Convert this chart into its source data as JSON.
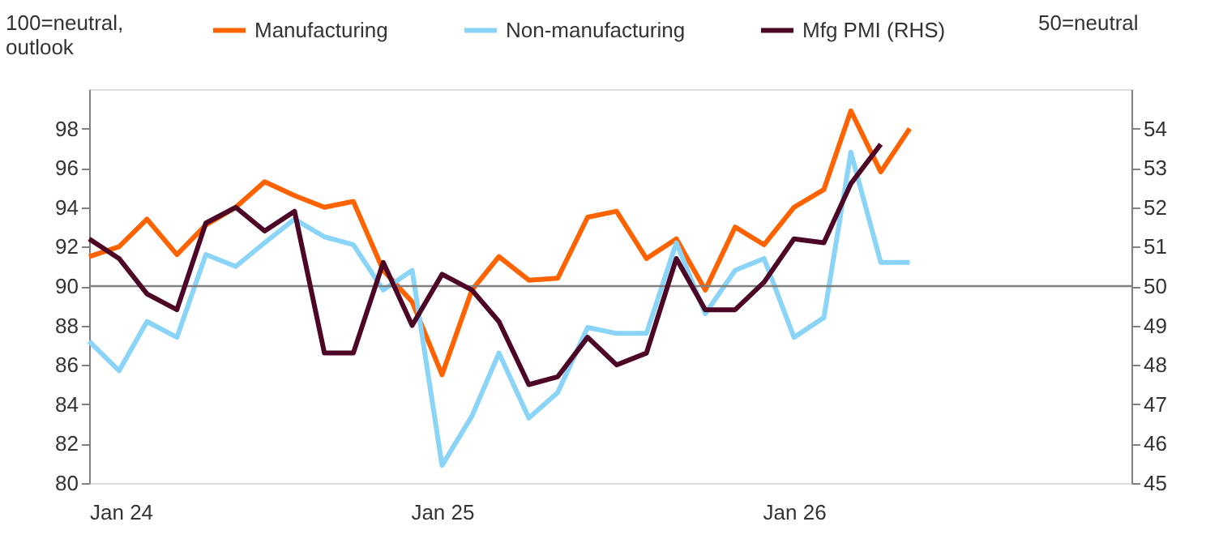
{
  "chart_data": {
    "type": "line",
    "ylabel": "100=neutral, outlook",
    "y2label": "50=neutral",
    "x": [
      "2024-01",
      "2024-02",
      "2024-03",
      "2024-04",
      "2024-05",
      "2024-06",
      "2024-07",
      "2024-08",
      "2024-09",
      "2024-10",
      "2024-11",
      "2024-12",
      "2025-01",
      "2025-02",
      "2025-03",
      "2025-04",
      "2025-05",
      "2025-06",
      "2025-07",
      "2025-08",
      "2025-09",
      "2025-10",
      "2025-11",
      "2025-12",
      "2026-01",
      "2026-02",
      "2026-03",
      "2026-04",
      "2026-05"
    ],
    "series": [
      {
        "name": "Manufacturing",
        "color": "#ff6200",
        "values": [
          91.5,
          92.0,
          93.4,
          91.6,
          93.1,
          94.0,
          95.3,
          94.6,
          94.0,
          94.3,
          90.8,
          89.2,
          85.5,
          89.8,
          91.5,
          90.3,
          90.4,
          93.5,
          93.8,
          91.4,
          92.4,
          89.8,
          93.0,
          92.1,
          94.0,
          94.9,
          98.9,
          95.8,
          98.0
        ]
      },
      {
        "name": "Non-manufacturing",
        "color": "#8ad4f7",
        "values": [
          87.2,
          85.7,
          88.2,
          87.4,
          91.6,
          91.0,
          92.2,
          93.4,
          92.5,
          92.1,
          89.8,
          90.8,
          80.9,
          83.4,
          86.6,
          83.3,
          84.6,
          87.9,
          87.6,
          87.6,
          92.2,
          88.6,
          90.8,
          91.4,
          87.4,
          88.4,
          96.8,
          91.2,
          91.2
        ]
      },
      {
        "name": "Mfg PMI (RHS)",
        "color": "#4d0625",
        "axis": "y2",
        "values": [
          51.2,
          50.7,
          49.8,
          49.4,
          51.6,
          52.0,
          51.4,
          51.9,
          48.3,
          48.3,
          50.6,
          49.0,
          50.3,
          49.9,
          49.1,
          47.5,
          47.7,
          48.7,
          48.0,
          48.3,
          50.7,
          49.4,
          49.4,
          50.1,
          51.2,
          51.1,
          52.6,
          53.6,
          null
        ]
      }
    ],
    "xlim": [
      "2024-01",
      "2026-12-17"
    ],
    "xticks": [
      {
        "value": "2024-01",
        "label": "Jan 24"
      },
      {
        "value": "2025-01",
        "label": "Jan 25"
      },
      {
        "value": "2026-01",
        "label": "Jan 26"
      }
    ],
    "ylim": [
      80,
      100
    ],
    "yticks": [
      80,
      82,
      84,
      86,
      88,
      90,
      92,
      94,
      96,
      98
    ],
    "y2lim": [
      45,
      55
    ],
    "y2ticks": [
      45,
      46,
      47,
      48,
      49,
      50,
      51,
      52,
      53,
      54
    ],
    "ref_lines": [
      {
        "axis": "y",
        "value": 90,
        "color": "#808080"
      }
    ],
    "grid": false,
    "legend": "top",
    "marker": "none",
    "line_style": "solid"
  }
}
